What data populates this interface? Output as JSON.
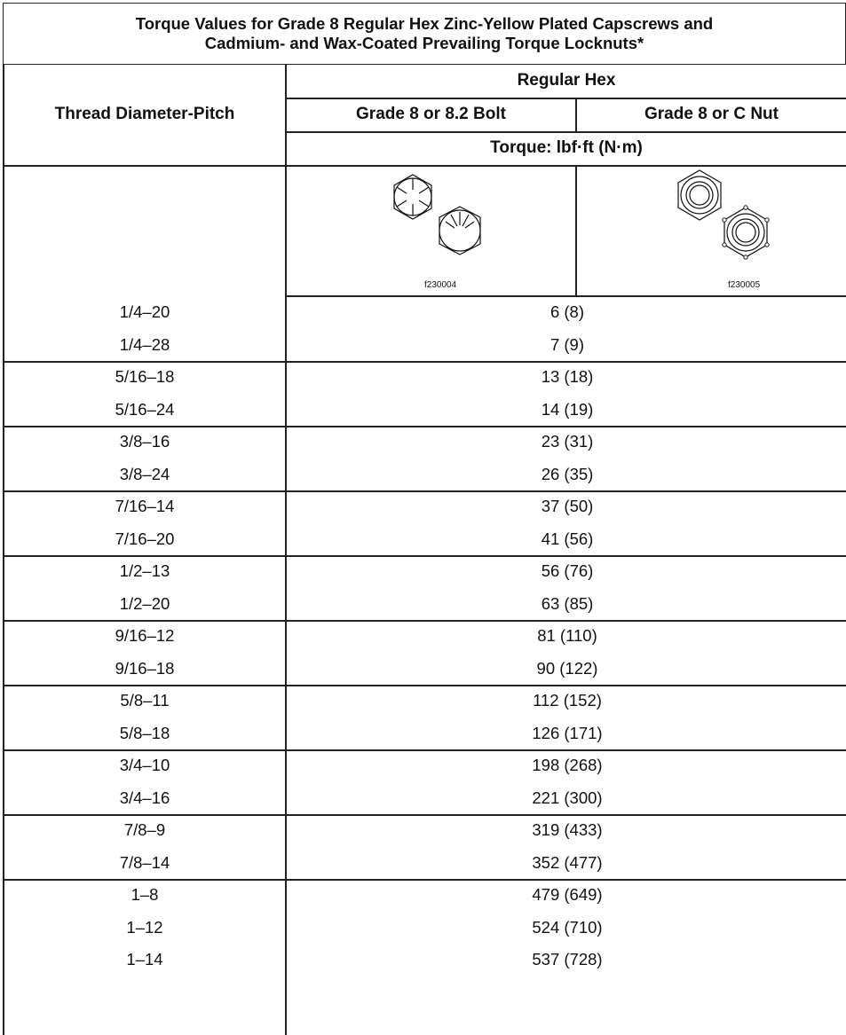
{
  "title": {
    "line1": "Torque Values for Grade 8 Regular Hex Zinc-Yellow Plated Capscrews and",
    "line2": "Cadmium- and Wax-Coated Prevailing Torque Locknuts*"
  },
  "headers": {
    "thread": "Thread Diameter-Pitch",
    "regular_hex": "Regular Hex",
    "bolt": "Grade 8 or 8.2 Bolt",
    "nut": "Grade 8 or C Nut",
    "torque_unit": "Torque: lbf·ft (N·m)"
  },
  "figures": {
    "bolt_caption": "f230004",
    "nut_caption": "f230005",
    "bolt_icon": "capscrew-head-icon",
    "nut_icon": "locknut-icon"
  },
  "rows": [
    {
      "thread": "1/4–20",
      "torque": "6 (8)"
    },
    {
      "thread": "1/4–28",
      "torque": "7 (9)"
    },
    {
      "thread": "5/16–18",
      "torque": "13 (18)"
    },
    {
      "thread": "5/16–24",
      "torque": "14 (19)"
    },
    {
      "thread": "3/8–16",
      "torque": "23 (31)"
    },
    {
      "thread": "3/8–24",
      "torque": "26 (35)"
    },
    {
      "thread": "7/16–14",
      "torque": "37 (50)"
    },
    {
      "thread": "7/16–20",
      "torque": "41 (56)"
    },
    {
      "thread": "1/2–13",
      "torque": "56 (76)"
    },
    {
      "thread": "1/2–20",
      "torque": "63 (85)"
    },
    {
      "thread": "9/16–12",
      "torque": "81 (110)"
    },
    {
      "thread": "9/16–18",
      "torque": "90 (122)"
    },
    {
      "thread": "5/8–11",
      "torque": "112 (152)"
    },
    {
      "thread": "5/8–18",
      "torque": "126 (171)"
    },
    {
      "thread": "3/4–10",
      "torque": "198 (268)"
    },
    {
      "thread": "3/4–16",
      "torque": "221 (300)"
    },
    {
      "thread": "7/8–9",
      "torque": "319 (433)"
    },
    {
      "thread": "7/8–14",
      "torque": "352 (477)"
    },
    {
      "thread": "1–8",
      "torque": "479 (649)"
    },
    {
      "thread": "1–12",
      "torque": "524 (710)"
    },
    {
      "thread": "1–14",
      "torque": "537 (728)"
    }
  ]
}
